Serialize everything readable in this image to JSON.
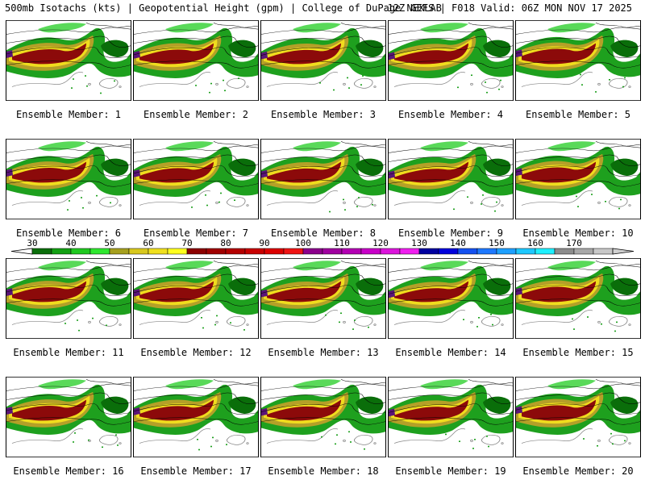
{
  "header": {
    "title": "500mb Isotachs (kts) | Geopotential Height (gpm) | College of DuPage NEXLAB",
    "run_info": "12Z GEFS | F018 Valid: 06Z MON NOV 17 2025"
  },
  "members": [
    {
      "label": "Ensemble Member: 1"
    },
    {
      "label": "Ensemble Member: 2"
    },
    {
      "label": "Ensemble Member: 3"
    },
    {
      "label": "Ensemble Member: 4"
    },
    {
      "label": "Ensemble Member: 5"
    },
    {
      "label": "Ensemble Member: 6"
    },
    {
      "label": "Ensemble Member: 7"
    },
    {
      "label": "Ensemble Member: 8"
    },
    {
      "label": "Ensemble Member: 9"
    },
    {
      "label": "Ensemble Member: 10"
    },
    {
      "label": "Ensemble Member: 11"
    },
    {
      "label": "Ensemble Member: 12"
    },
    {
      "label": "Ensemble Member: 13"
    },
    {
      "label": "Ensemble Member: 14"
    },
    {
      "label": "Ensemble Member: 15"
    },
    {
      "label": "Ensemble Member: 16"
    },
    {
      "label": "Ensemble Member: 17"
    },
    {
      "label": "Ensemble Member: 18"
    },
    {
      "label": "Ensemble Member: 19"
    },
    {
      "label": "Ensemble Member: 20"
    }
  ],
  "colorbar": {
    "ticks": [
      "30",
      "40",
      "50",
      "60",
      "70",
      "80",
      "90",
      "100",
      "110",
      "120",
      "130",
      "140",
      "150",
      "160",
      "170"
    ],
    "colors": [
      "#0a6e0a",
      "#13a013",
      "#1fc81f",
      "#2fe82f",
      "#a6a01e",
      "#d8c81e",
      "#f0e01e",
      "#ffff1e",
      "#8c0000",
      "#a00000",
      "#b40000",
      "#c80000",
      "#dc0000",
      "#f01414",
      "#8c008c",
      "#a000a0",
      "#b400b4",
      "#c800c8",
      "#dc14dc",
      "#f01ef0",
      "#0000a0",
      "#0000dc",
      "#1450f0",
      "#1e78ff",
      "#1ea0ff",
      "#1ec8ff",
      "#1ef0ff",
      "#8c8c8c",
      "#a8a8a8",
      "#c8c8c8"
    ]
  },
  "map_colors": {
    "green_dark": "#0a6e0a",
    "green": "#1ea01e",
    "green_light": "#3cd23c",
    "olive": "#b4a028",
    "yellow": "#f0dc1e",
    "maroon": "#8c0a0a",
    "purple": "#5a1478",
    "contour": "#000000",
    "coast": "#888888"
  }
}
